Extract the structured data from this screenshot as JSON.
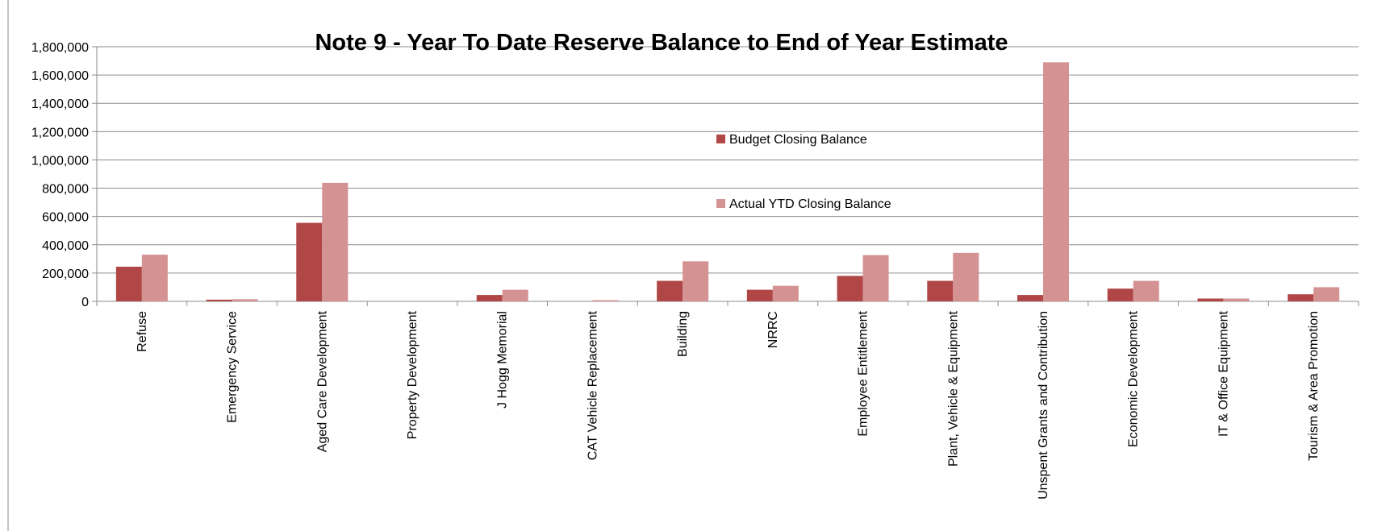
{
  "chart_data": {
    "type": "bar",
    "title": "Note 9 - Year To Date Reserve Balance to End of Year Estimate",
    "xlabel": "",
    "ylabel": "",
    "ylim": [
      0,
      1800000
    ],
    "yticks": [
      0,
      200000,
      400000,
      600000,
      800000,
      1000000,
      1200000,
      1400000,
      1600000,
      1800000
    ],
    "ytick_labels": [
      "0",
      "200,000",
      "400,000",
      "600,000",
      "800,000",
      "1,000,000",
      "1,200,000",
      "1,400,000",
      "1,600,000",
      "1,800,000"
    ],
    "grid": true,
    "legend_position": "center",
    "categories": [
      "Refuse",
      "Emergency Service",
      "Aged Care Development",
      "Property Development",
      "J Hogg Memorial",
      "CAT Vehicle Replacement",
      "Building",
      "NRRC",
      "Employee Entitlement",
      "Plant, Vehicle & Equipment",
      "Unspent Grants and Contribution",
      "Economic Development",
      "IT & Office Equipment",
      "Tourism & Area Promotion"
    ],
    "series": [
      {
        "name": "Budget Closing Balance",
        "color": "#b04646",
        "values": [
          245000,
          12000,
          555000,
          0,
          45000,
          0,
          145000,
          82000,
          180000,
          145000,
          45000,
          90000,
          20000,
          50000
        ]
      },
      {
        "name": "Actual YTD Closing Balance",
        "color": "#d49292",
        "values": [
          330000,
          15000,
          838000,
          0,
          82000,
          8000,
          283000,
          110000,
          327000,
          343000,
          1690000,
          145000,
          20000,
          100000
        ]
      }
    ]
  }
}
